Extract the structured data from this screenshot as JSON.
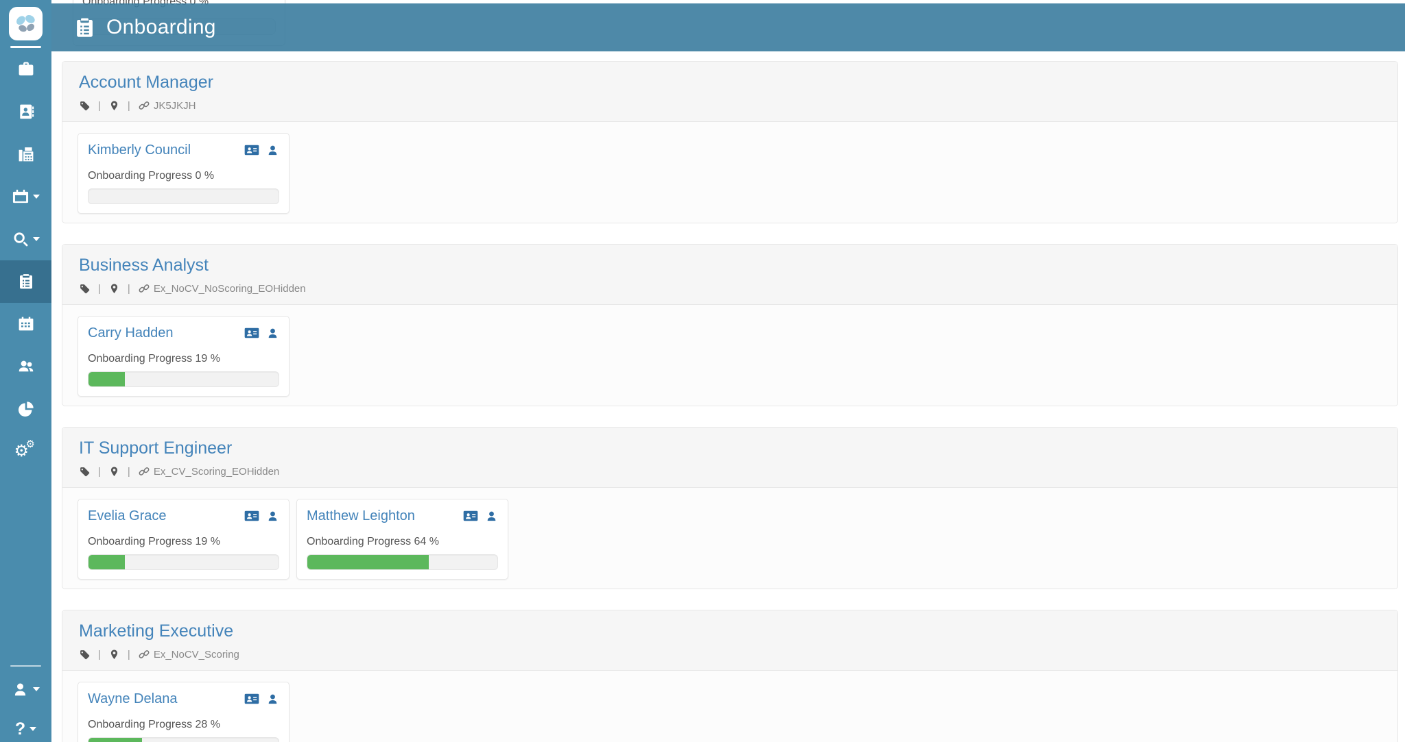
{
  "ui": {
    "meta_separator": "|"
  },
  "colors": {
    "sidebar": "#4a8cad",
    "sidebar_active": "#37708f",
    "header": "rgba(59,124,158,0.9)",
    "link_blue": "#4484ba",
    "card_icon_blue": "#2e6da4",
    "progress_green": "#5cb85c",
    "text_gray": "#555555",
    "meta_gray": "#888888"
  },
  "header": {
    "icon": "clipboard-list-icon",
    "title": "Onboarding"
  },
  "ghost_card": {
    "progress_label": "Onboarding Progress 0 %"
  },
  "sidebar": {
    "logo_icon": "butterfly-logo",
    "items": [
      {
        "name": "jobs",
        "icon": "briefcase-icon",
        "active": false,
        "caret": false
      },
      {
        "name": "contacts",
        "icon": "address-book-icon",
        "active": false,
        "caret": false
      },
      {
        "name": "fax",
        "icon": "fax-icon",
        "active": false,
        "caret": false
      },
      {
        "name": "calendar-menu",
        "icon": "calendar-icon",
        "active": false,
        "caret": true
      },
      {
        "name": "search-menu",
        "icon": "search-icon",
        "active": false,
        "caret": true
      },
      {
        "name": "onboarding",
        "icon": "clipboard-list-icon",
        "active": true,
        "caret": false
      },
      {
        "name": "schedule",
        "icon": "calendar-grid-icon",
        "active": false,
        "caret": false
      },
      {
        "name": "people",
        "icon": "users-icon",
        "active": false,
        "caret": false
      },
      {
        "name": "reports",
        "icon": "pie-chart-icon",
        "active": false,
        "caret": false
      },
      {
        "name": "settings",
        "icon": "cogs-icon",
        "active": false,
        "caret": false
      }
    ],
    "footer": {
      "account": {
        "icon": "user-icon",
        "caret": true
      },
      "help": {
        "glyph": "?",
        "icon": "question-icon",
        "caret": true
      }
    }
  },
  "sections": [
    {
      "title": "Account Manager",
      "reference": "JK5JKJH",
      "candidates": [
        {
          "name": "Kimberly Council",
          "progress_label": "Onboarding Progress 0 %",
          "progress_pct": 0
        }
      ]
    },
    {
      "title": "Business Analyst",
      "reference": "Ex_NoCV_NoScoring_EOHidden",
      "candidates": [
        {
          "name": "Carry Hadden",
          "progress_label": "Onboarding Progress 19 %",
          "progress_pct": 19
        }
      ]
    },
    {
      "title": "IT Support Engineer",
      "reference": "Ex_CV_Scoring_EOHidden",
      "candidates": [
        {
          "name": "Evelia Grace",
          "progress_label": "Onboarding Progress 19 %",
          "progress_pct": 19
        },
        {
          "name": "Matthew Leighton",
          "progress_label": "Onboarding Progress 64 %",
          "progress_pct": 64
        }
      ]
    },
    {
      "title": "Marketing Executive",
      "reference": "Ex_NoCV_Scoring",
      "candidates": [
        {
          "name": "Wayne Delana",
          "progress_label": "Onboarding Progress 28 %",
          "progress_pct": 28
        }
      ]
    }
  ]
}
